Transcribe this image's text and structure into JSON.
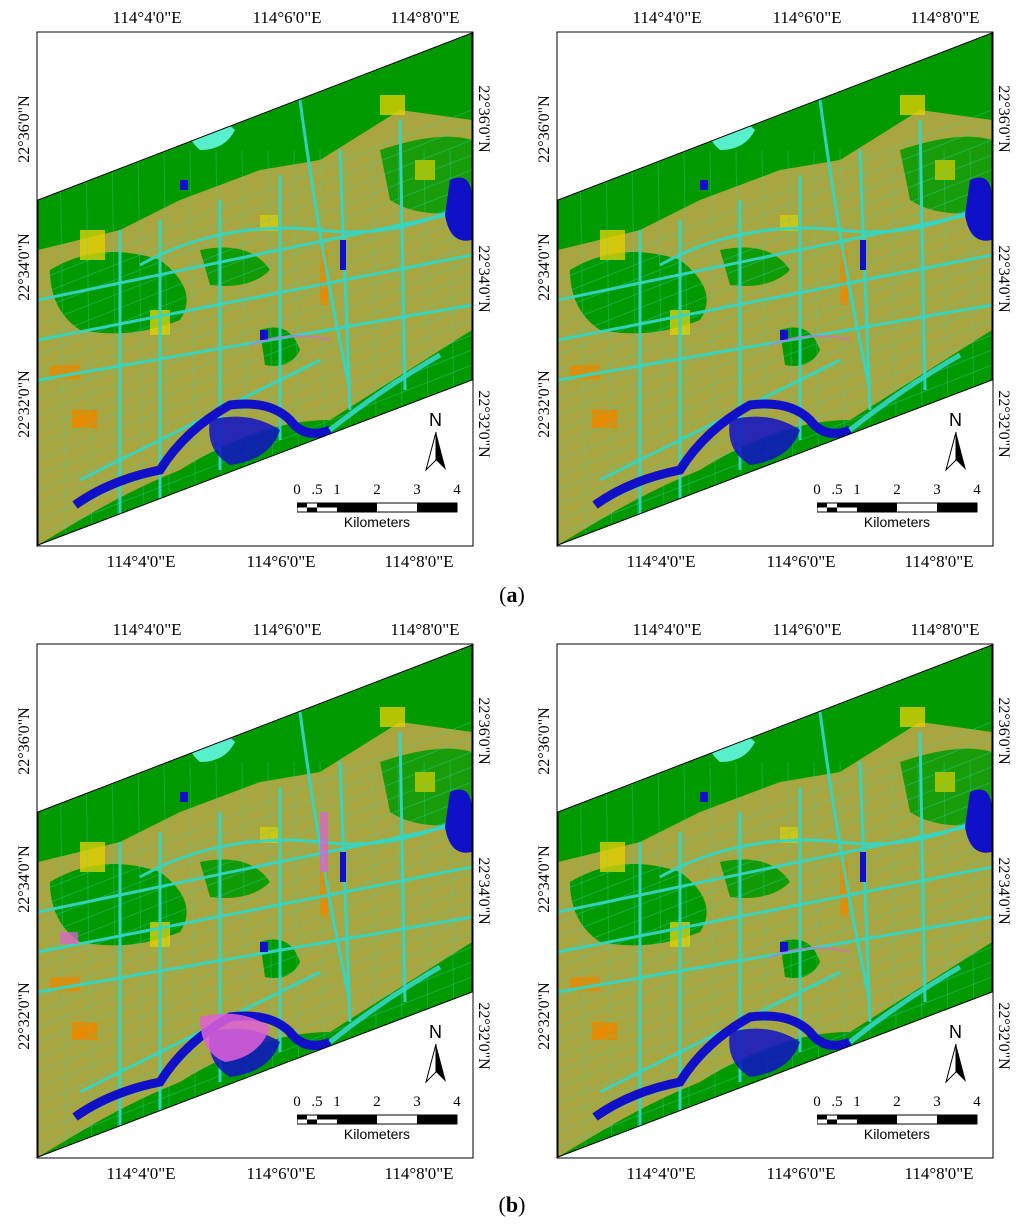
{
  "figure": {
    "caption_a": "a",
    "caption_b": "b",
    "panels": [
      {
        "id": "a-left",
        "variant": "a"
      },
      {
        "id": "a-right",
        "variant": "a"
      },
      {
        "id": "b-left",
        "variant": "b"
      },
      {
        "id": "b-right",
        "variant": "a"
      }
    ]
  },
  "map": {
    "lon_labels": [
      "114°4'0\"E",
      "114°6'0\"E",
      "114°8'0\"E"
    ],
    "lat_labels": [
      "22°36'0\"N",
      "22°34'0\"N",
      "22°32'0\"N"
    ],
    "north_label": "N",
    "scale_labels": [
      "0",
      ".5",
      "1",
      "2",
      "3",
      "4"
    ],
    "scale_unit": "Kilometers"
  },
  "colors": {
    "vegetation": "#009a00",
    "urban": "#a8a640",
    "road": "#33d6c4",
    "water": "#1010c8",
    "bare": "#e0d000",
    "orange": "#e68a00",
    "pink": "#e060d8",
    "cyan_light": "#66ffee"
  }
}
